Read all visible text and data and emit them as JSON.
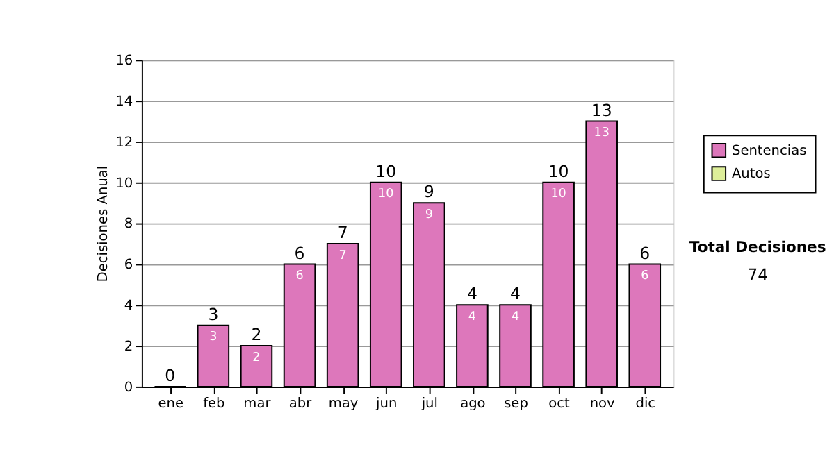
{
  "chart_data": {
    "type": "bar",
    "ylabel": "Decisiones Anual",
    "categories": [
      "ene",
      "feb",
      "mar",
      "abr",
      "may",
      "jun",
      "jul",
      "ago",
      "sep",
      "oct",
      "nov",
      "dic"
    ],
    "series": [
      {
        "name": "Sentencias",
        "color": "#dd77bb",
        "values": [
          0,
          3,
          2,
          6,
          7,
          10,
          9,
          4,
          4,
          10,
          13,
          6
        ],
        "value_labels": [
          null,
          "3",
          "2",
          "6",
          "7",
          "10",
          "9",
          "4",
          "4",
          "10",
          "13",
          "6"
        ]
      },
      {
        "name": "Autos",
        "color": "#ddee99",
        "values": [
          null,
          null,
          null,
          null,
          null,
          null,
          null,
          null,
          null,
          null,
          null,
          null
        ]
      }
    ],
    "stacked": true,
    "totals": [
      "0",
      "3",
      "2",
      "6",
      "7",
      "10",
      "9",
      "4",
      "4",
      "10",
      "13",
      "6"
    ],
    "ylim": [
      0,
      16
    ],
    "yticks": [
      0,
      2,
      4,
      6,
      8,
      10,
      12,
      14,
      16
    ],
    "grid": "y",
    "legend": "right",
    "annotations": [
      "Total Decisiones",
      "74"
    ]
  }
}
